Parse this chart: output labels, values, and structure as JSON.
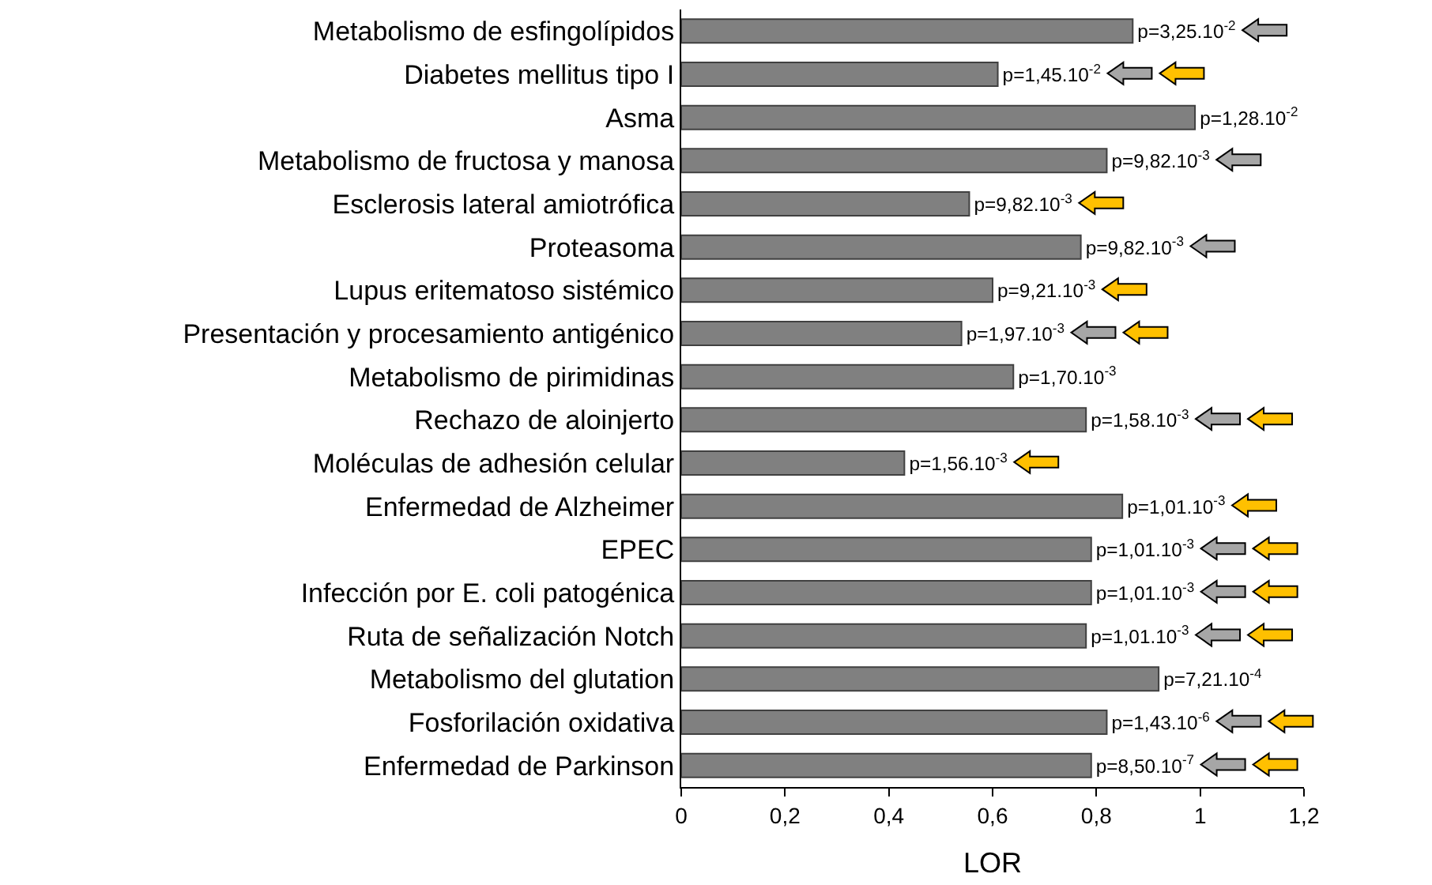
{
  "chart_data": {
    "type": "bar",
    "orientation": "horizontal",
    "xlabel": "LOR",
    "categories": [
      "Metabolismo de esfingolípidos",
      "Diabetes mellitus tipo I",
      "Asma",
      "Metabolismo de fructosa y manosa",
      "Esclerosis lateral amiotrófica",
      "Proteasoma",
      "Lupus eritematoso sistémico",
      "Presentación y procesamiento antigénico",
      "Metabolismo de pirimidinas",
      "Rechazo de aloinjerto",
      "Moléculas de adhesión celular",
      "Enfermedad de Alzheimer",
      "EPEC",
      "Infección por E. coli patogénica",
      "Ruta de señalización Notch",
      "Metabolismo del glutation",
      "Fosforilación oxidativa",
      "Enfermedad de Parkinson"
    ],
    "values": [
      0.87,
      0.61,
      0.99,
      0.82,
      0.555,
      0.77,
      0.6,
      0.54,
      0.64,
      0.78,
      0.43,
      0.85,
      0.79,
      0.79,
      0.78,
      0.92,
      0.82,
      0.79
    ],
    "value_labels": [
      "p=3,25.10$^{-2}$",
      "p=1,45.10$^{-2}$",
      "p=1,28.10$^{-2}$",
      "p=9,82.10$^{-3}$",
      "p=9,82.10$^{-3}$",
      "p=9,82.10$^{-3}$",
      "p=9,21.10$^{-3}$",
      "p=1,97.10$^{-3}$",
      "p=1,70.10$^{-3}$",
      "p=1,58.10$^{-3}$",
      "p=1,56.10$^{-3}$",
      "p=1,01.10$^{-3}$",
      "p=1,01.10$^{-3}$",
      "p=1,01.10$^{-3}$",
      "p=1,01.10$^{-3}$",
      "p=7,21.10$^{-4}$",
      "p=1,43.10$^{-6}$",
      "p=8,50.10$^{-7}$"
    ],
    "color": "#808080",
    "xlim": [
      0,
      1.2
    ],
    "xticks": [
      {
        "value": 0,
        "label": "0"
      },
      {
        "value": 0.2,
        "label": "0,2"
      },
      {
        "value": 0.4,
        "label": "0,4"
      },
      {
        "value": 0.6,
        "label": "0,6"
      },
      {
        "value": 0.8,
        "label": "0,8"
      },
      {
        "value": 1,
        "label": "1"
      },
      {
        "value": 1.2,
        "label": "1,2"
      }
    ],
    "grid": false
  }
}
